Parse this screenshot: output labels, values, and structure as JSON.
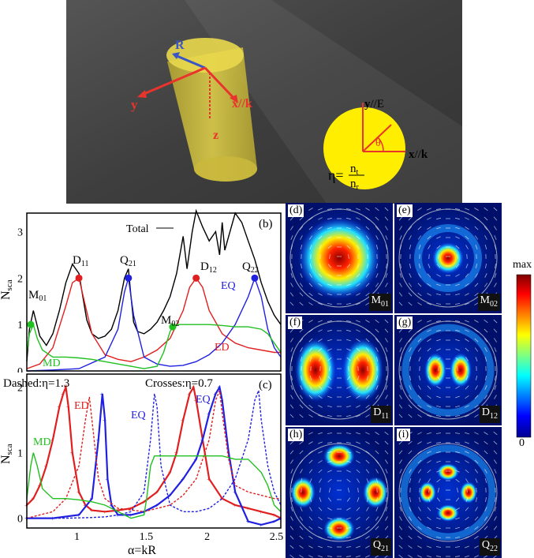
{
  "schematic": {
    "axis_labels": {
      "y": "y",
      "x_k": "x//k",
      "z": "z",
      "R": "R"
    },
    "inset": {
      "y_label": "y",
      "y_suffix": "//E",
      "x_label": "x",
      "x_suffix": "//",
      "k_label": "k",
      "theta": "θ",
      "eta_lhs": "η=",
      "n_t": "n",
      "n_t_sub": "t",
      "n_r": "n",
      "n_r_sub": "r"
    },
    "colors": {
      "background": "#4a4a4a",
      "cylinder": "#d8c63a",
      "axes": "#e8342c",
      "radius": "#3a55c8",
      "disk": "#ffee00"
    }
  },
  "charts": {
    "b": {
      "panel_label": "(b)",
      "ylabel": "N",
      "ylabel_sub": "sca",
      "yticks": [
        "0",
        "1",
        "2",
        "3"
      ],
      "annotations": {
        "total": "Total",
        "M01": "M",
        "M01_sub": "01",
        "D11": "D",
        "D11_sub": "11",
        "Q21": "Q",
        "Q21_sub": "21",
        "D12": "D",
        "D12_sub": "12",
        "Q22": "Q",
        "Q22_sub": "22",
        "M02": "M",
        "M02_sub": "02",
        "EQ": "EQ",
        "ED": "ED",
        "MD": "MD"
      }
    },
    "c": {
      "panel_label": "(c)",
      "legend_dashed": "Dashed:η=1.3",
      "legend_crosses": "Crosses:η=0.7",
      "ylabel": "N",
      "ylabel_sub": "sca",
      "xlabel": "α=kR",
      "yticks": [
        "0",
        "1",
        "2"
      ],
      "xticks": [
        "1",
        "1.5",
        "2",
        "2.5"
      ],
      "annotations": {
        "ED": "ED",
        "EQ1": "EQ",
        "EQ2": "EQ",
        "MD": "MD"
      }
    }
  },
  "chart_data": [
    {
      "type": "line",
      "panel": "b",
      "xlim": [
        0.6,
        2.55
      ],
      "ylim": [
        0,
        3.4
      ],
      "series": [
        {
          "name": "Total",
          "color": "#000000",
          "x": [
            0.6,
            0.62,
            0.65,
            0.7,
            0.75,
            0.8,
            0.85,
            0.9,
            0.95,
            1.0,
            1.03,
            1.06,
            1.1,
            1.15,
            1.2,
            1.25,
            1.3,
            1.35,
            1.38,
            1.4,
            1.42,
            1.45,
            1.5,
            1.55,
            1.6,
            1.65,
            1.7,
            1.75,
            1.8,
            1.83,
            1.85,
            1.87,
            1.9,
            1.95,
            2.0,
            2.05,
            2.08,
            2.1,
            2.12,
            2.15,
            2.2,
            2.25,
            2.3,
            2.35,
            2.4,
            2.45,
            2.5,
            2.55
          ],
          "y": [
            0.2,
            0.9,
            1.3,
            0.75,
            0.55,
            0.8,
            1.3,
            1.9,
            2.3,
            2.1,
            1.6,
            1.1,
            0.8,
            0.7,
            0.75,
            0.9,
            1.3,
            2.0,
            2.2,
            1.6,
            1.05,
            0.85,
            0.8,
            0.9,
            1.05,
            1.3,
            1.6,
            2.1,
            2.9,
            2.2,
            2.6,
            3.0,
            3.45,
            3.1,
            2.8,
            3.0,
            2.5,
            3.2,
            2.6,
            2.9,
            3.4,
            3.2,
            2.8,
            2.4,
            1.9,
            1.5,
            1.2,
            1.0
          ]
        },
        {
          "name": "",
          "color": "#e02020",
          "x": [
            0.6,
            0.7,
            0.8,
            0.9,
            0.95,
            1.0,
            1.05,
            1.1,
            1.2,
            1.3,
            1.4,
            1.5,
            1.6,
            1.7,
            1.8,
            1.85,
            1.9,
            1.95,
            2.0,
            2.1,
            2.2,
            2.3,
            2.4,
            2.5,
            2.55
          ],
          "y": [
            0.05,
            0.15,
            0.5,
            1.4,
            1.9,
            2.0,
            1.4,
            0.8,
            0.35,
            0.25,
            0.2,
            0.3,
            0.45,
            0.7,
            1.3,
            1.8,
            2.0,
            1.8,
            1.3,
            0.8,
            0.6,
            0.5,
            0.45,
            0.4,
            0.4
          ]
        },
        {
          "name": "",
          "color": "#2020e0",
          "x": [
            0.6,
            0.8,
            1.0,
            1.2,
            1.3,
            1.35,
            1.38,
            1.42,
            1.5,
            1.6,
            1.7,
            1.8,
            1.9,
            2.0,
            2.1,
            2.2,
            2.3,
            2.35,
            2.4,
            2.45,
            2.5,
            2.55
          ],
          "y": [
            0,
            0.02,
            0.05,
            0.3,
            0.9,
            1.7,
            2.0,
            1.2,
            0.3,
            0.15,
            0.1,
            0.12,
            0.2,
            0.35,
            0.6,
            1.0,
            1.6,
            2.0,
            1.6,
            0.9,
            0.5,
            0.3
          ]
        },
        {
          "name": "",
          "color": "#20c020",
          "x": [
            0.6,
            0.62,
            0.65,
            0.68,
            0.72,
            0.8,
            0.9,
            1.0,
            1.1,
            1.2,
            1.3,
            1.4,
            1.5,
            1.6,
            1.65,
            1.7,
            1.72,
            1.75,
            1.8,
            1.9,
            2.0,
            2.1,
            2.2,
            2.3,
            2.4,
            2.45,
            2.5,
            2.55
          ],
          "y": [
            0.4,
            0.8,
            1.0,
            0.7,
            0.45,
            0.3,
            0.3,
            0.28,
            0.25,
            0.2,
            0.15,
            0.1,
            0.05,
            0.1,
            0.4,
            0.85,
            0.95,
            1.0,
            1.0,
            1.0,
            1.0,
            0.98,
            0.95,
            0.95,
            0.9,
            0.8,
            0.6,
            0.4
          ]
        }
      ],
      "markers": [
        {
          "x": 0.63,
          "y": 1.0,
          "color": "#20c020"
        },
        {
          "x": 1.0,
          "y": 2.0,
          "color": "#e02020"
        },
        {
          "x": 1.38,
          "y": 2.0,
          "color": "#2020e0"
        },
        {
          "x": 1.72,
          "y": 0.95,
          "color": "#20c020"
        },
        {
          "x": 1.9,
          "y": 2.0,
          "color": "#e02020"
        },
        {
          "x": 2.35,
          "y": 2.0,
          "color": "#2020e0"
        }
      ]
    },
    {
      "type": "line",
      "panel": "c",
      "xlim": [
        0.6,
        2.55
      ],
      "ylim": [
        -0.15,
        2.2
      ],
      "series": [
        {
          "name": "",
          "color": "#e02020",
          "style": "crosses",
          "x": [
            0.6,
            0.65,
            0.7,
            0.75,
            0.8,
            0.85,
            0.88,
            0.9,
            0.92,
            0.95,
            1.0,
            1.05,
            1.1,
            1.2,
            1.3,
            1.4,
            1.5,
            1.6,
            1.7,
            1.75,
            1.8,
            1.85,
            1.88,
            1.9,
            1.95,
            2.0,
            2.1,
            2.2,
            2.3,
            2.4,
            2.5,
            2.55
          ],
          "y": [
            0.2,
            0.3,
            0.5,
            0.8,
            1.2,
            1.7,
            1.9,
            2.0,
            1.7,
            1.0,
            0.4,
            0.2,
            0.12,
            0.1,
            0.12,
            0.15,
            0.25,
            0.4,
            0.7,
            1.0,
            1.5,
            1.9,
            2.0,
            1.8,
            1.2,
            0.6,
            0.3,
            0.2,
            0.15,
            0.1,
            0.05,
            0.0
          ]
        },
        {
          "name": "",
          "color": "#2020e0",
          "style": "crosses",
          "x": [
            0.6,
            0.8,
            1.0,
            1.1,
            1.15,
            1.18,
            1.2,
            1.22,
            1.25,
            1.3,
            1.4,
            1.5,
            1.6,
            1.7,
            1.8,
            1.9,
            1.95,
            2.0,
            2.05,
            2.08,
            2.1,
            2.15,
            2.2,
            2.3,
            2.4,
            2.5,
            2.55
          ],
          "y": [
            0,
            0,
            0.05,
            0.3,
            1.2,
            1.9,
            1.5,
            0.6,
            0.2,
            0.05,
            0.05,
            0.1,
            0.2,
            0.35,
            0.6,
            0.9,
            1.2,
            1.6,
            1.9,
            2.0,
            1.8,
            1.0,
            0.4,
            -0.05,
            -0.1,
            -0.05,
            0.0
          ]
        },
        {
          "name": "",
          "color": "#e02020",
          "style": "dashed",
          "x": [
            0.6,
            0.8,
            0.9,
            1.0,
            1.05,
            1.08,
            1.1,
            1.15,
            1.2,
            1.3,
            1.5,
            1.7,
            1.8,
            1.9,
            2.0,
            2.05,
            2.08,
            2.1,
            2.15,
            2.2,
            2.3,
            2.4,
            2.5,
            2.55
          ],
          "y": [
            0,
            0.1,
            0.3,
            0.8,
            1.5,
            1.85,
            1.5,
            0.6,
            0.3,
            0.15,
            0.1,
            0.2,
            0.35,
            0.6,
            1.2,
            1.8,
            1.95,
            1.6,
            0.9,
            0.5,
            0.4,
            0.35,
            0.3,
            0.3
          ]
        },
        {
          "name": "",
          "color": "#2020e0",
          "style": "dashed",
          "x": [
            0.6,
            0.9,
            1.1,
            1.2,
            1.3,
            1.4,
            1.5,
            1.55,
            1.58,
            1.6,
            1.63,
            1.7,
            1.8,
            1.9,
            2.0,
            2.1,
            2.2,
            2.3,
            2.35,
            2.38,
            2.4,
            2.45,
            2.5,
            2.55
          ],
          "y": [
            0,
            0,
            0.01,
            0.02,
            0.05,
            0.1,
            0.4,
            1.2,
            1.9,
            1.7,
            0.8,
            0.2,
            0.1,
            0.1,
            0.15,
            0.3,
            0.6,
            1.2,
            1.8,
            1.95,
            1.5,
            0.8,
            0.4,
            0.2
          ]
        },
        {
          "name": "",
          "color": "#20c020",
          "style": "solid",
          "x": [
            0.6,
            0.63,
            0.65,
            0.68,
            0.72,
            0.8,
            0.9,
            1.0,
            1.1,
            1.2,
            1.3,
            1.4,
            1.5,
            1.52,
            1.55,
            1.58,
            1.6,
            1.7,
            1.8,
            1.9,
            2.0,
            2.1,
            2.2,
            2.3,
            2.4,
            2.45,
            2.5,
            2.55
          ],
          "y": [
            0.3,
            0.8,
            1.0,
            0.8,
            0.45,
            0.3,
            0.3,
            0.28,
            0.25,
            0.2,
            0.1,
            0.0,
            0.05,
            0.3,
            0.8,
            0.95,
            0.95,
            0.95,
            0.95,
            0.95,
            0.95,
            0.95,
            0.9,
            0.9,
            0.7,
            0.5,
            0.2,
            0.1
          ]
        }
      ]
    }
  ],
  "fields": [
    {
      "label": "(d)",
      "mode": "M",
      "mode_sub": "01",
      "pattern": "center-large"
    },
    {
      "label": "(e)",
      "mode": "M",
      "mode_sub": "02",
      "pattern": "center-small-ring"
    },
    {
      "label": "(f)",
      "mode": "D",
      "mode_sub": "11",
      "pattern": "dipole"
    },
    {
      "label": "(g)",
      "mode": "D",
      "mode_sub": "12",
      "pattern": "dipole-ring"
    },
    {
      "label": "(h)",
      "mode": "Q",
      "mode_sub": "21",
      "pattern": "quadrupole"
    },
    {
      "label": "(i)",
      "mode": "Q",
      "mode_sub": "22",
      "pattern": "quadrupole-ring"
    }
  ],
  "colorbar": {
    "max_label": "max",
    "min_label": "0"
  }
}
